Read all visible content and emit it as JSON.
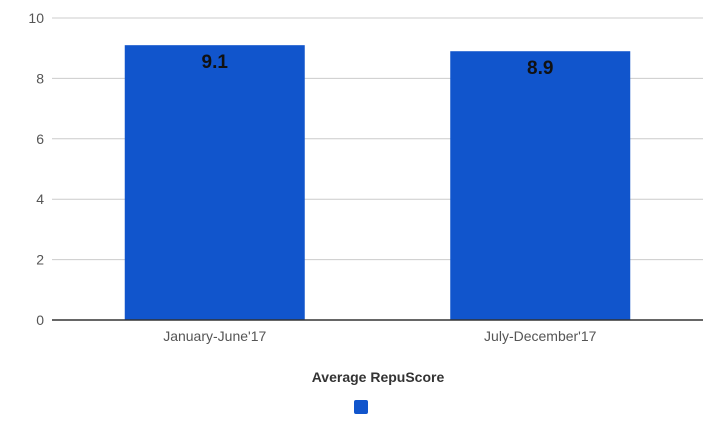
{
  "chart_data": {
    "type": "bar",
    "categories": [
      "January-June'17",
      "July-December'17"
    ],
    "series": [
      {
        "values": [
          9.1,
          8.9
        ],
        "color": "#1155cc"
      }
    ],
    "data_labels": [
      "9.1",
      "8.9"
    ],
    "xlabel": "Average RepuScore",
    "ylabel": "",
    "ylim": [
      0,
      10
    ],
    "yticks": [
      0,
      2,
      4,
      6,
      8,
      10
    ],
    "ytick_labels": [
      "0",
      "2",
      "4",
      "6",
      "8",
      "10"
    ],
    "grid": true,
    "gridline_color": "#cccccc",
    "axis_color": "#333333",
    "legend": {
      "position": "bottom",
      "entries": [
        {
          "color": "#1155cc"
        }
      ]
    }
  }
}
